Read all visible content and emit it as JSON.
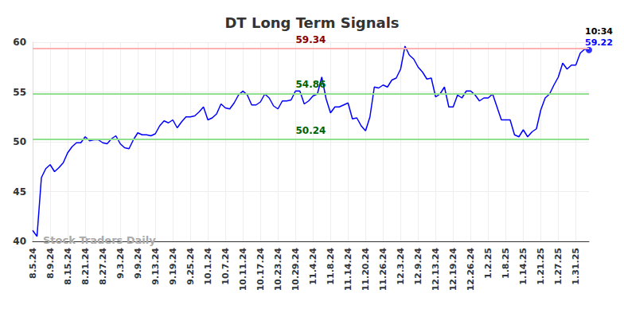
{
  "chart_data": {
    "type": "line",
    "title": "DT Long Term Signals",
    "categories": [
      "8.5.24",
      null,
      null,
      null,
      "8.9.24",
      null,
      null,
      null,
      "8.15.24",
      null,
      null,
      null,
      "8.21.24",
      null,
      null,
      null,
      "8.27.24",
      null,
      null,
      null,
      "9.3.24",
      null,
      null,
      null,
      "9.9.24",
      null,
      null,
      null,
      "9.13.24",
      null,
      null,
      null,
      "9.19.24",
      null,
      null,
      null,
      "9.25.24",
      null,
      null,
      null,
      "10.1.24",
      null,
      null,
      null,
      "10.7.24",
      null,
      null,
      null,
      "10.11.24",
      null,
      null,
      null,
      "10.17.24",
      null,
      null,
      null,
      "10.23.24",
      null,
      null,
      null,
      "10.29.24",
      null,
      null,
      null,
      "11.4.24",
      null,
      null,
      null,
      "11.8.24",
      null,
      null,
      null,
      "11.14.24",
      null,
      null,
      null,
      "11.20.24",
      null,
      null,
      null,
      "11.26.24",
      null,
      null,
      null,
      "12.3.24",
      null,
      null,
      null,
      "12.9.24",
      null,
      null,
      null,
      "12.13.24",
      null,
      null,
      null,
      "12.19.24",
      null,
      null,
      null,
      "12.26.24",
      null,
      null,
      null,
      "1.2.25",
      null,
      null,
      null,
      "1.8.25",
      null,
      null,
      null,
      "1.14.25",
      null,
      null,
      null,
      "1.21.25",
      null,
      null,
      null,
      "1.27.25",
      null,
      null,
      null,
      "1.31.25",
      null,
      null,
      null
    ],
    "values": [
      41.1,
      40.5,
      46.4,
      47.3,
      47.7,
      47.0,
      47.4,
      47.9,
      48.9,
      49.5,
      49.9,
      49.9,
      50.5,
      50.1,
      50.2,
      50.2,
      49.9,
      49.8,
      50.3,
      50.6,
      49.8,
      49.4,
      49.3,
      50.2,
      50.9,
      50.7,
      50.7,
      50.6,
      50.8,
      51.6,
      52.1,
      51.9,
      52.2,
      51.4,
      52.0,
      52.5,
      52.5,
      52.6,
      53.0,
      53.5,
      52.2,
      52.4,
      52.8,
      53.8,
      53.4,
      53.3,
      53.9,
      54.7,
      55.1,
      54.7,
      53.7,
      53.7,
      54.0,
      54.8,
      54.4,
      53.6,
      53.3,
      54.1,
      54.1,
      54.2,
      55.1,
      55.1,
      53.8,
      54.1,
      54.6,
      54.8,
      56.5,
      54.3,
      52.9,
      53.5,
      53.5,
      53.7,
      53.9,
      52.3,
      52.4,
      51.6,
      51.1,
      52.5,
      55.5,
      55.4,
      55.7,
      55.5,
      56.2,
      56.4,
      57.3,
      59.6,
      58.7,
      58.3,
      57.5,
      57.0,
      56.3,
      56.4,
      54.5,
      54.8,
      55.5,
      53.5,
      53.5,
      54.7,
      54.4,
      55.1,
      55.1,
      54.7,
      54.1,
      54.4,
      54.4,
      54.8,
      53.5,
      52.2,
      52.2,
      52.2,
      50.7,
      50.5,
      51.2,
      50.5,
      51.0,
      51.3,
      53.2,
      54.4,
      54.8,
      55.7,
      56.5,
      57.9,
      57.3,
      57.7,
      57.7,
      58.9,
      59.3,
      59.22
    ],
    "color": "#0000ff",
    "ylim": [
      40,
      60
    ],
    "yticks": [
      40,
      45,
      50,
      55,
      60
    ],
    "grid": true,
    "reference_lines": [
      {
        "value": 59.34,
        "color": "#8b0000"
      },
      {
        "value": 54.86,
        "color": "#006400"
      },
      {
        "value": 50.24,
        "color": "#006400"
      }
    ],
    "time_label": "10:34",
    "watermark": "Stock Traders Daily"
  }
}
